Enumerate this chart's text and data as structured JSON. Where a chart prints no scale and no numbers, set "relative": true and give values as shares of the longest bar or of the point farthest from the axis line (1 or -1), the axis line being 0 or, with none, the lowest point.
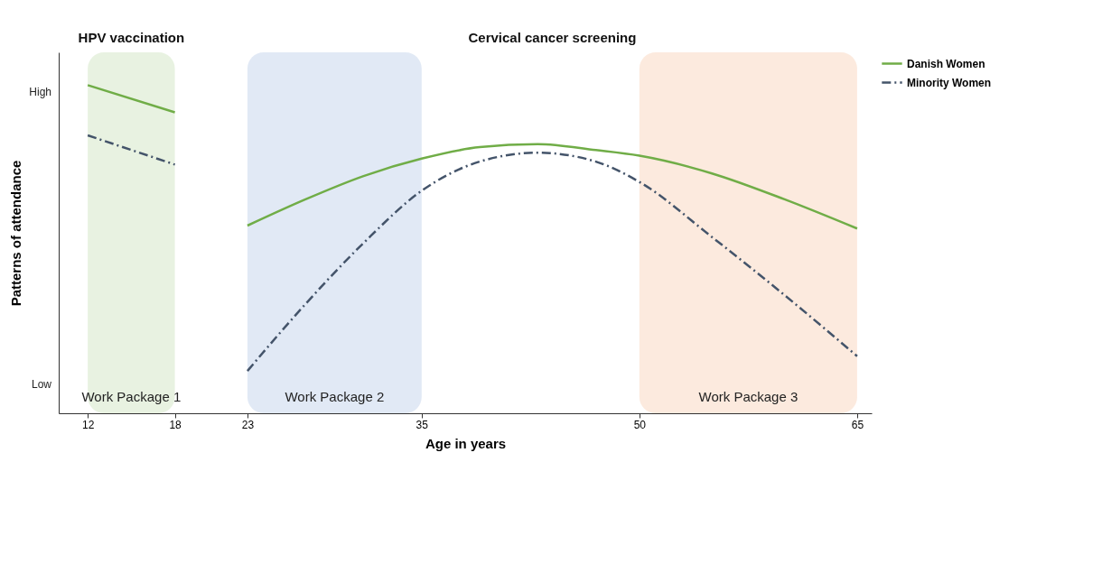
{
  "chart_data": {
    "type": "line",
    "relative": true,
    "xlabel": "Age in years",
    "ylabel": "Patterns of attendance",
    "xlim": [
      10,
      66
    ],
    "xticks": [
      12,
      18,
      23,
      35,
      50,
      65
    ],
    "grid": false,
    "legend": "right",
    "series": [
      {
        "name": "Danish Women",
        "color": "#70ad47",
        "line_style": "solid",
        "x": [
          12,
          18,
          20,
          23,
          27,
          31,
          35,
          39,
          43,
          47,
          50,
          55,
          60,
          65
        ],
        "values": [
          1.0,
          0.917,
          null,
          0.572,
          0.652,
          0.723,
          0.776,
          0.811,
          0.82,
          0.802,
          0.785,
          0.731,
          0.652,
          0.563
        ]
      },
      {
        "name": "Minority Women",
        "color": "#44546a",
        "line_style": "dashed",
        "x": [
          12,
          18,
          20,
          23,
          27,
          31,
          35,
          39,
          43,
          47,
          50,
          55,
          60,
          65
        ],
        "values": [
          0.847,
          0.758,
          null,
          0.129,
          0.333,
          0.519,
          0.678,
          0.767,
          0.794,
          0.767,
          0.705,
          0.537,
          0.36,
          0.174
        ]
      }
    ],
    "bands": [
      {
        "axis": "x",
        "from": 12,
        "to": 18,
        "label": "Work Package 1",
        "color": "#e2efd9"
      },
      {
        "axis": "x",
        "from": 23,
        "to": 35,
        "label": "Work Package 2",
        "color": "#dae3f3"
      },
      {
        "axis": "x",
        "from": 50,
        "to": 65,
        "label": "Work Package 3",
        "color": "#fbe5d6"
      }
    ],
    "annotations": [
      "High",
      "Low",
      "HPV vaccination",
      "Cervical cancer screening"
    ]
  }
}
